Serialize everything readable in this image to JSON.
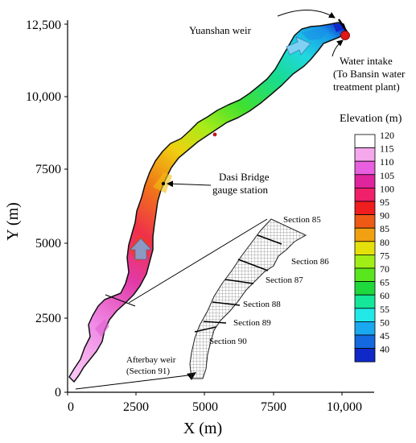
{
  "map": {
    "x_axis": {
      "label": "X (m)",
      "ticks": [
        "0",
        "2500",
        "5000",
        "7500",
        "10,000"
      ]
    },
    "y_axis": {
      "label": "Y (m)",
      "ticks": [
        "0",
        "2500",
        "5000",
        "7500",
        "10,000",
        "12,500"
      ]
    },
    "annotations": {
      "yuanshan_weir": "Yuanshan weir",
      "water_intake_l1": "Water intake",
      "water_intake_l2": "(To Bansin water",
      "water_intake_l3": "treatment plant)",
      "dasi_bridge_l1": "Dasi Bridge",
      "dasi_bridge_l2": "gauge station",
      "afterbay_l1": "Afterbay weir",
      "afterbay_l2": "(Section 91)"
    },
    "sections": [
      "Section 85",
      "Section 86",
      "Section 87",
      "Section 88",
      "Section 89",
      "Section 90"
    ],
    "legend": {
      "title": "Elevation (m)",
      "levels": [
        {
          "label": "120",
          "color": "#ffffff"
        },
        {
          "label": "115",
          "color": "#f5a8ec"
        },
        {
          "label": "110",
          "color": "#e85fe0"
        },
        {
          "label": "105",
          "color": "#e0249e"
        },
        {
          "label": "100",
          "color": "#f0206a"
        },
        {
          "label": "95",
          "color": "#f01e1e"
        },
        {
          "label": "90",
          "color": "#ee5a15"
        },
        {
          "label": "85",
          "color": "#f0a010"
        },
        {
          "label": "80",
          "color": "#e6e00a"
        },
        {
          "label": "75",
          "color": "#a0ee16"
        },
        {
          "label": "70",
          "color": "#5ae61e"
        },
        {
          "label": "65",
          "color": "#1ed83c"
        },
        {
          "label": "60",
          "color": "#14e69a"
        },
        {
          "label": "55",
          "color": "#22e8e8"
        },
        {
          "label": "50",
          "color": "#1aa8f0"
        },
        {
          "label": "45",
          "color": "#1468e0"
        },
        {
          "label": "40",
          "color": "#1028c8"
        }
      ]
    }
  }
}
